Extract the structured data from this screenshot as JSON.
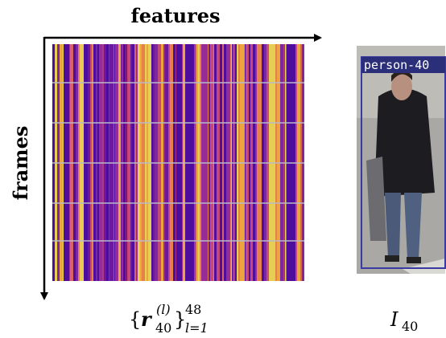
{
  "axes": {
    "horizontal": "features",
    "vertical": "frames"
  },
  "detection": {
    "label": "person-40"
  },
  "caption_left": {
    "open": "{",
    "symbol": "r",
    "superscript": "(l)",
    "subscript": "40",
    "close": "}",
    "upper": "48",
    "lower": "l=1"
  },
  "caption_right": {
    "symbol": "I",
    "subscript": "40"
  }
}
